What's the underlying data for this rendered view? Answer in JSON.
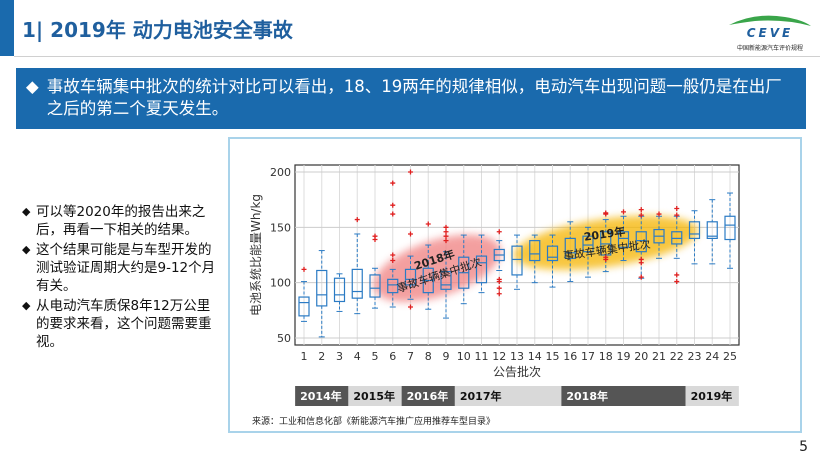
{
  "header": {
    "title": "1| 2019年 动力电池安全事故",
    "logo_text": "CEVE",
    "logo_subtitle": "中国新能源汽车评价规程",
    "accent": "#1a6aad"
  },
  "banner": {
    "icon": "diamond-icon",
    "text": "事故车辆集中批次的统计对比可以看出，18、19两年的规律相似，电动汽车出现问题一般仍是在出厂之后的第二个夏天发生。"
  },
  "bullets": [
    "可以等2020年的报告出来之后，再看一下相关的结果。",
    "这个结果可能是与车型开发的测试验证周期大约是9-12个月有关。",
    "从电动汽车质保8年12万公里的要求来看，这个问题需要重视。"
  ],
  "source": "来源：工业和信息化部《新能源汽车推广应用推荐车型目录》",
  "page_number": "5",
  "chart_data": {
    "type": "boxplot",
    "xlabel": "公告批次",
    "ylabel": "电池系统比能量Wh/kg",
    "ylim": [
      45,
      205
    ],
    "yticks": [
      50,
      100,
      150,
      200
    ],
    "grid": true,
    "categories": [
      "1",
      "2",
      "3",
      "4",
      "5",
      "6",
      "7",
      "8",
      "9",
      "10",
      "11",
      "12",
      "13",
      "14",
      "15",
      "16",
      "17",
      "18",
      "19",
      "20",
      "21",
      "22",
      "23",
      "24",
      "25"
    ],
    "boxes": [
      {
        "min": 65,
        "q1": 70,
        "median": 82,
        "q3": 87,
        "max": 101,
        "outliers": [
          112
        ]
      },
      {
        "min": 51,
        "q1": 79,
        "median": 89,
        "q3": 111,
        "max": 129,
        "outliers": []
      },
      {
        "min": 74,
        "q1": 83,
        "median": 89,
        "q3": 104,
        "max": 108,
        "outliers": []
      },
      {
        "min": 72,
        "q1": 86,
        "median": 92,
        "q3": 112,
        "max": 144,
        "outliers": [
          157
        ]
      },
      {
        "min": 77,
        "q1": 87,
        "median": 95,
        "q3": 107,
        "max": 113,
        "outliers": [
          139,
          142
        ]
      },
      {
        "min": 78,
        "q1": 91,
        "median": 98,
        "q3": 103,
        "max": 112,
        "outliers": [
          120,
          125,
          162,
          170,
          190
        ]
      },
      {
        "min": 85,
        "q1": 98,
        "median": 103,
        "q3": 112,
        "max": 124,
        "outliers": [
          78,
          144,
          200
        ]
      },
      {
        "min": 76,
        "q1": 91,
        "median": 102,
        "q3": 113,
        "max": 134,
        "outliers": [
          153
        ]
      },
      {
        "min": 68,
        "q1": 94,
        "median": 98,
        "q3": 110,
        "max": 128,
        "outliers": [
          138,
          142,
          146,
          150
        ]
      },
      {
        "min": 81,
        "q1": 95,
        "median": 109,
        "q3": 123,
        "max": 143,
        "outliers": []
      },
      {
        "min": 91,
        "q1": 100,
        "median": 118,
        "q3": 124,
        "max": 143,
        "outliers": []
      },
      {
        "min": 111,
        "q1": 120,
        "median": 125,
        "q3": 130,
        "max": 138,
        "outliers": [
          90,
          95,
          101,
          103,
          146
        ]
      },
      {
        "min": 94,
        "q1": 107,
        "median": 121,
        "q3": 133,
        "max": 143,
        "outliers": []
      },
      {
        "min": 100,
        "q1": 120,
        "median": 126,
        "q3": 138,
        "max": 143,
        "outliers": []
      },
      {
        "min": 96,
        "q1": 120,
        "median": 123,
        "q3": 133,
        "max": 143,
        "outliers": []
      },
      {
        "min": 101,
        "q1": 122,
        "median": 127,
        "q3": 140,
        "max": 155,
        "outliers": []
      },
      {
        "min": 105,
        "q1": 128,
        "median": 134,
        "q3": 142,
        "max": 150,
        "outliers": []
      },
      {
        "min": 110,
        "q1": 125,
        "median": 135,
        "q3": 146,
        "max": 157,
        "outliers": [
          121,
          123,
          162,
          163
        ]
      },
      {
        "min": 120,
        "q1": 132,
        "median": 140,
        "q3": 146,
        "max": 160,
        "outliers": [
          164
        ]
      },
      {
        "min": 104,
        "q1": 128,
        "median": 138,
        "q3": 146,
        "max": 160,
        "outliers": [
          105,
          118,
          121,
          161,
          166
        ]
      },
      {
        "min": 122,
        "q1": 136,
        "median": 142,
        "q3": 148,
        "max": 160,
        "outliers": [
          162
        ]
      },
      {
        "min": 122,
        "q1": 135,
        "median": 140,
        "q3": 146,
        "max": 160,
        "outliers": [
          101,
          107,
          161,
          167
        ]
      },
      {
        "min": 117,
        "q1": 140,
        "median": 144,
        "q3": 155,
        "max": 165,
        "outliers": []
      },
      {
        "min": 117,
        "q1": 140,
        "median": 142,
        "q3": 155,
        "max": 175,
        "outliers": []
      },
      {
        "min": 113,
        "q1": 139,
        "median": 152,
        "q3": 160,
        "max": 181,
        "outliers": []
      }
    ],
    "box_color": "#2b7bc4",
    "outlier_color": "#e02020",
    "highlights": [
      {
        "label_year": "2018年",
        "label_text": "事故车辆集中批次",
        "from_batch": 6,
        "to_batch": 11,
        "color": "#f08080"
      },
      {
        "label_year": "2019年",
        "label_text": "事故车辆集中批次",
        "from_batch": 14,
        "to_batch": 22,
        "color": "#f5b400"
      }
    ],
    "year_bands": [
      {
        "label": "2014年",
        "from_batch": 1,
        "to_batch": 3,
        "dark": true
      },
      {
        "label": "2015年",
        "from_batch": 4,
        "to_batch": 6,
        "dark": false
      },
      {
        "label": "2016年",
        "from_batch": 7,
        "to_batch": 9,
        "dark": true
      },
      {
        "label": "2017年",
        "from_batch": 10,
        "to_batch": 15,
        "dark": false
      },
      {
        "label": "2018年",
        "from_batch": 16,
        "to_batch": 22,
        "dark": true
      },
      {
        "label": "2019年",
        "from_batch": 23,
        "to_batch": 25,
        "dark": false
      }
    ]
  }
}
